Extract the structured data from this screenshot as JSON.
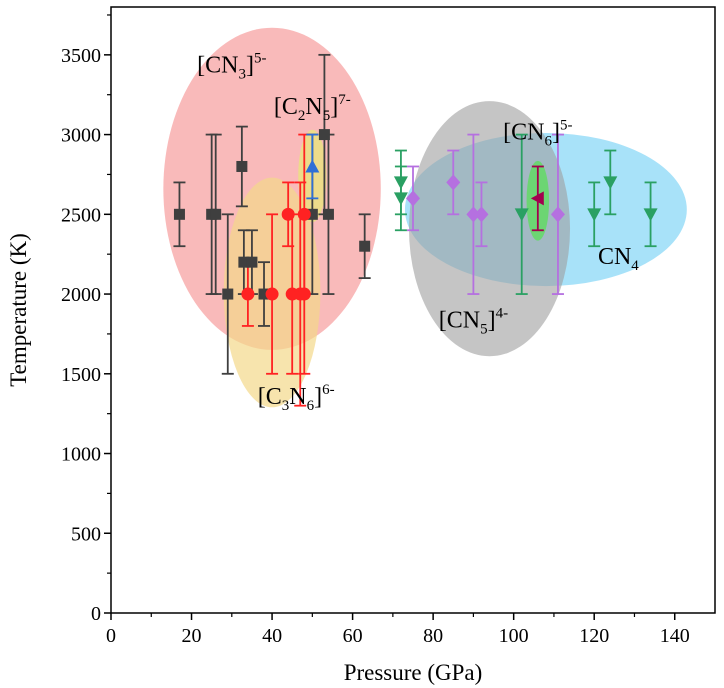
{
  "chart_data": {
    "type": "scatter",
    "xlabel": "Pressure (GPa)",
    "ylabel": "Temperature (K)",
    "xlim": [
      0,
      150
    ],
    "ylim": [
      0,
      3800
    ],
    "x_ticks": [
      "0",
      "20",
      "40",
      "60",
      "80",
      "100",
      "120",
      "140"
    ],
    "y_ticks": [
      "0",
      "500",
      "1000",
      "1500",
      "2000",
      "2500",
      "3000",
      "3500"
    ],
    "grid": false,
    "legend": "none",
    "regions": [
      {
        "label": "[CN3]5-",
        "base": "[CN",
        "sub": "3",
        "post": "]",
        "sup": "5-",
        "color": "#f7a3a3",
        "opacity": 0.75,
        "center": [
          40,
          2660
        ],
        "radius": [
          27,
          1010
        ],
        "label_pos": [
          30,
          3390
        ]
      },
      {
        "label": "[C3N6]6-",
        "base": "[C",
        "sub": "3",
        "mid": "N",
        "sub2": "6",
        "post": "]",
        "sup": "6-",
        "color": "#f4d98a",
        "opacity": 0.7,
        "center": [
          40,
          2010
        ],
        "radius": [
          12,
          720
        ],
        "label_pos": [
          46,
          1310
        ]
      },
      {
        "label": "[C2N5]7-",
        "base": "[C",
        "sub": "2",
        "mid": "N",
        "sub2": "5",
        "post": "]",
        "sup": "7-",
        "color": "#e8e57a",
        "opacity": 0.75,
        "center": [
          50,
          2740
        ],
        "radius": [
          3.5,
          290
        ],
        "label_pos": [
          50,
          3130
        ]
      },
      {
        "label": "CN4",
        "base": "CN",
        "sub": "4",
        "post": "",
        "sup": "",
        "color": "#6ecff5",
        "opacity": 0.6,
        "center": [
          108,
          2530
        ],
        "radius": [
          35,
          480
        ],
        "label_pos": [
          126,
          2190
        ]
      },
      {
        "label": "[CN5]4-",
        "base": "[CN",
        "sub": "5",
        "post": "]",
        "sup": "4-",
        "color": "#9e9e9e",
        "opacity": 0.6,
        "center": [
          94,
          2410
        ],
        "radius": [
          20,
          800
        ],
        "label_pos": [
          90,
          1790
        ]
      },
      {
        "label": "[CN6]5-",
        "base": "[CN",
        "sub": "6",
        "post": "]",
        "sup": "5-",
        "color": "#5fdc5f",
        "opacity": 0.8,
        "center": [
          106,
          2585
        ],
        "radius": [
          2.8,
          250
        ],
        "label_pos": [
          106,
          2970
        ]
      }
    ],
    "series": [
      {
        "marker": "square",
        "color": "#3f3f3f",
        "errcolor": "#3f3f3f",
        "points": [
          {
            "x": 17,
            "y": 2500,
            "err": 200
          },
          {
            "x": 25,
            "y": 2500,
            "err": 500
          },
          {
            "x": 26,
            "y": 2500,
            "err": 500
          },
          {
            "x": 29,
            "y": 2000,
            "err": 500
          },
          {
            "x": 32.5,
            "y": 2800,
            "err": 250
          },
          {
            "x": 33,
            "y": 2200,
            "err": 200
          },
          {
            "x": 35,
            "y": 2200,
            "err": 200
          },
          {
            "x": 38,
            "y": 2000,
            "err": 200
          },
          {
            "x": 50,
            "y": 2500,
            "err": 500
          },
          {
            "x": 53,
            "y": 3000,
            "err": 500
          },
          {
            "x": 54,
            "y": 2500,
            "err": 500
          },
          {
            "x": 63,
            "y": 2300,
            "err": 200
          }
        ]
      },
      {
        "marker": "circle",
        "color": "#ff2222",
        "errcolor": "#ff2222",
        "points": [
          {
            "x": 34,
            "y": 2000,
            "err": 200
          },
          {
            "x": 40,
            "y": 2000,
            "err": 500
          },
          {
            "x": 44,
            "y": 2500,
            "err": 200
          },
          {
            "x": 45,
            "y": 2000,
            "err": 500
          },
          {
            "x": 47,
            "y": 2000,
            "err": 700
          },
          {
            "x": 48,
            "y": 2500,
            "err": 500
          },
          {
            "x": 48,
            "y": 2000,
            "err": 500
          }
        ]
      },
      {
        "marker": "triangle-up",
        "color": "#2f6fd6",
        "errcolor": "#2f6fd6",
        "points": [
          {
            "x": 50,
            "y": 2800,
            "err": 200
          }
        ]
      },
      {
        "marker": "triangle-down",
        "color": "#2aa063",
        "errcolor": "#2aa063",
        "points": [
          {
            "x": 72,
            "y": 2700,
            "err": 200
          },
          {
            "x": 72,
            "y": 2600,
            "err": 200
          },
          {
            "x": 102,
            "y": 2500,
            "err": 500
          },
          {
            "x": 120,
            "y": 2500,
            "err": 200
          },
          {
            "x": 124,
            "y": 2700,
            "err": 200
          },
          {
            "x": 134,
            "y": 2500,
            "err": 200
          }
        ]
      },
      {
        "marker": "diamond",
        "color": "#b570e0",
        "errcolor": "#b570e0",
        "points": [
          {
            "x": 75,
            "y": 2600,
            "err": 200
          },
          {
            "x": 85,
            "y": 2700,
            "err": 200
          },
          {
            "x": 90,
            "y": 2500,
            "err": 500
          },
          {
            "x": 92,
            "y": 2500,
            "err": 200
          },
          {
            "x": 111,
            "y": 2500,
            "err": 500
          }
        ]
      },
      {
        "marker": "triangle-left",
        "color": "#a3004f",
        "errcolor": "#a3004f",
        "points": [
          {
            "x": 106,
            "y": 2600,
            "err": 200
          }
        ]
      }
    ]
  }
}
